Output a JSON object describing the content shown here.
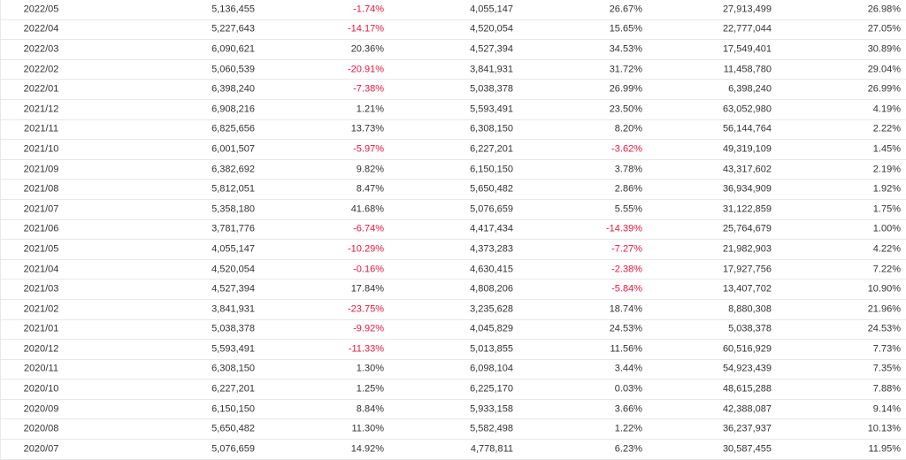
{
  "colors": {
    "negative": "#e8173e",
    "text": "#333333",
    "rule": "#e8e8e8"
  },
  "table": {
    "rows": [
      [
        "2022/05",
        "5,136,455",
        "-1.74%",
        "4,055,147",
        "26.67%",
        "27,913,499",
        "26.98%"
      ],
      [
        "2022/04",
        "5,227,643",
        "-14.17%",
        "4,520,054",
        "15.65%",
        "22,777,044",
        "27.05%"
      ],
      [
        "2022/03",
        "6,090,621",
        "20.36%",
        "4,527,394",
        "34.53%",
        "17,549,401",
        "30.89%"
      ],
      [
        "2022/02",
        "5,060,539",
        "-20.91%",
        "3,841,931",
        "31.72%",
        "11,458,780",
        "29.04%"
      ],
      [
        "2022/01",
        "6,398,240",
        "-7.38%",
        "5,038,378",
        "26.99%",
        "6,398,240",
        "26.99%"
      ],
      [
        "2021/12",
        "6,908,216",
        "1.21%",
        "5,593,491",
        "23.50%",
        "63,052,980",
        "4.19%"
      ],
      [
        "2021/11",
        "6,825,656",
        "13.73%",
        "6,308,150",
        "8.20%",
        "56,144,764",
        "2.22%"
      ],
      [
        "2021/10",
        "6,001,507",
        "-5.97%",
        "6,227,201",
        "-3.62%",
        "49,319,109",
        "1.45%"
      ],
      [
        "2021/09",
        "6,382,692",
        "9.82%",
        "6,150,150",
        "3.78%",
        "43,317,602",
        "2.19%"
      ],
      [
        "2021/08",
        "5,812,051",
        "8.47%",
        "5,650,482",
        "2.86%",
        "36,934,909",
        "1.92%"
      ],
      [
        "2021/07",
        "5,358,180",
        "41.68%",
        "5,076,659",
        "5.55%",
        "31,122,859",
        "1.75%"
      ],
      [
        "2021/06",
        "3,781,776",
        "-6.74%",
        "4,417,434",
        "-14.39%",
        "25,764,679",
        "1.00%"
      ],
      [
        "2021/05",
        "4,055,147",
        "-10.29%",
        "4,373,283",
        "-7.27%",
        "21,982,903",
        "4.22%"
      ],
      [
        "2021/04",
        "4,520,054",
        "-0.16%",
        "4,630,415",
        "-2.38%",
        "17,927,756",
        "7.22%"
      ],
      [
        "2021/03",
        "4,527,394",
        "17.84%",
        "4,808,206",
        "-5.84%",
        "13,407,702",
        "10.90%"
      ],
      [
        "2021/02",
        "3,841,931",
        "-23.75%",
        "3,235,628",
        "18.74%",
        "8,880,308",
        "21.96%"
      ],
      [
        "2021/01",
        "5,038,378",
        "-9.92%",
        "4,045,829",
        "24.53%",
        "5,038,378",
        "24.53%"
      ],
      [
        "2020/12",
        "5,593,491",
        "-11.33%",
        "5,013,855",
        "11.56%",
        "60,516,929",
        "7.73%"
      ],
      [
        "2020/11",
        "6,308,150",
        "1.30%",
        "6,098,104",
        "3.44%",
        "54,923,439",
        "7.35%"
      ],
      [
        "2020/10",
        "6,227,201",
        "1.25%",
        "6,225,170",
        "0.03%",
        "48,615,288",
        "7.88%"
      ],
      [
        "2020/09",
        "6,150,150",
        "8.84%",
        "5,933,158",
        "3.66%",
        "42,388,087",
        "9.14%"
      ],
      [
        "2020/08",
        "5,650,482",
        "11.30%",
        "5,582,498",
        "1.22%",
        "36,237,937",
        "10.13%"
      ],
      [
        "2020/07",
        "5,076,659",
        "14.92%",
        "4,778,811",
        "6.23%",
        "30,587,455",
        "11.95%"
      ]
    ]
  }
}
